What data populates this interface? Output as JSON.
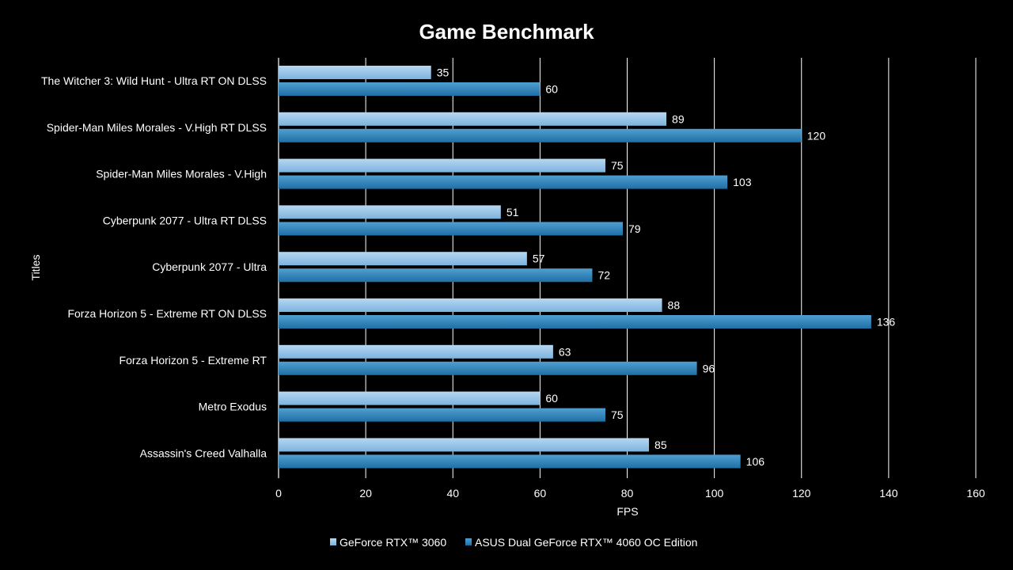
{
  "chart_data": {
    "type": "bar",
    "orientation": "horizontal",
    "title": "Game Benchmark",
    "xlabel": "FPS",
    "ylabel": "Titles",
    "xlim": [
      0,
      160
    ],
    "xticks": [
      0,
      20,
      40,
      60,
      80,
      100,
      120,
      140,
      160
    ],
    "grid": true,
    "legend_position": "bottom",
    "categories": [
      "The Witcher 3: Wild Hunt - Ultra RT ON DLSS",
      "Spider-Man Miles Morales - V.High RT DLSS",
      "Spider-Man Miles Morales - V.High",
      "Cyberpunk 2077 - Ultra RT DLSS",
      "Cyberpunk 2077 - Ultra",
      "Forza Horizon 5 - Extreme RT ON DLSS",
      "Forza Horizon 5 - Extreme RT",
      "Metro Exodus",
      "Assassin's Creed Valhalla"
    ],
    "series": [
      {
        "name": "GeForce RTX™ 3060",
        "color_top": "#b7d7f0",
        "color_bottom": "#7cb3de",
        "values": [
          35,
          89,
          75,
          51,
          57,
          88,
          63,
          60,
          85
        ]
      },
      {
        "name": "ASUS Dual GeForce RTX™ 4060 OC Edition",
        "color_top": "#4f9fd1",
        "color_bottom": "#1f6fa5",
        "values": [
          60,
          120,
          103,
          79,
          72,
          136,
          96,
          75,
          106
        ]
      }
    ]
  }
}
